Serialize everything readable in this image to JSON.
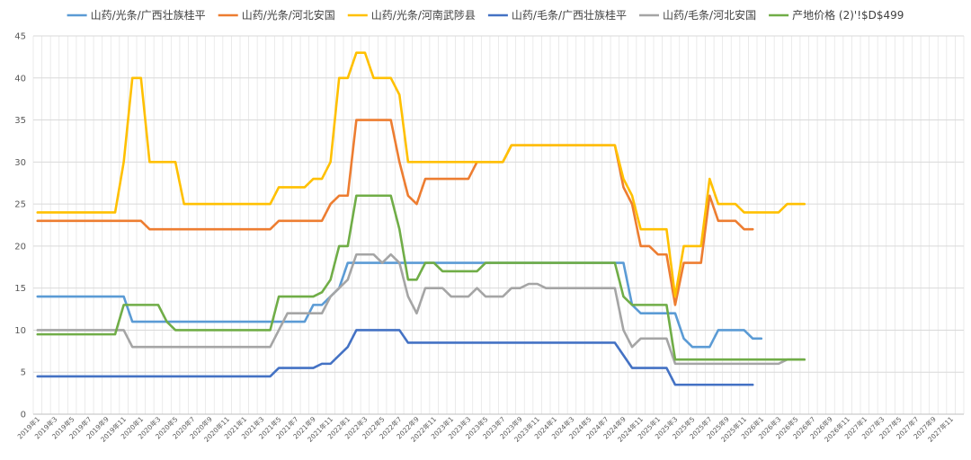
{
  "chart_data": {
    "type": "line",
    "title": "",
    "xlabel": "",
    "ylabel": "",
    "ylim": [
      0,
      45
    ],
    "y_ticks": [
      0,
      5,
      10,
      15,
      20,
      25,
      30,
      35,
      40,
      45
    ],
    "grid": true,
    "legend_position": "top",
    "x_tick_labels": [
      "2019年1",
      "2019年3",
      "2019年5",
      "2019年7",
      "2019年9",
      "2019年11",
      "2020年1",
      "2020年3",
      "2020年5",
      "2020年7",
      "2020年9",
      "2020年11",
      "2021年1",
      "2021年3",
      "2021年5",
      "2021年7",
      "2021年9",
      "2021年11",
      "2022年1",
      "2022年3",
      "2022年5",
      "2022年7",
      "2022年9",
      "2022年11",
      "2023年1",
      "2023年3",
      "2023年5",
      "2023年7",
      "2023年9",
      "2023年11",
      "2024年1",
      "2024年3",
      "2024年5",
      "2024年7",
      "2024年9",
      "2024年11",
      "2025年1",
      "2025年3",
      "2025年5",
      "2025年7",
      "2025年9",
      "2025年11",
      "2026年1",
      "2026年3",
      "2026年5",
      "2026年7",
      "2026年9",
      "2026年11",
      "2027年1",
      "2027年3",
      "2027年5",
      "2027年7",
      "2027年9",
      "2027年11"
    ],
    "x_start": "2019-01",
    "series": [
      {
        "name": "山药/光条/广西壮族桂平",
        "color": "#5B9BD5",
        "points": [
          [
            0,
            14
          ],
          [
            10,
            14
          ],
          [
            11,
            11
          ],
          [
            31,
            11
          ],
          [
            32,
            13
          ],
          [
            33,
            13
          ],
          [
            35,
            15
          ],
          [
            36,
            18
          ],
          [
            52,
            18
          ],
          [
            56,
            18
          ],
          [
            68,
            18
          ],
          [
            69,
            13
          ],
          [
            70,
            12
          ],
          [
            73,
            12
          ],
          [
            74,
            12
          ],
          [
            75,
            9
          ],
          [
            76,
            8
          ],
          [
            78,
            8
          ],
          [
            79,
            10
          ],
          [
            82,
            10
          ],
          [
            83,
            9
          ],
          [
            84,
            9
          ]
        ]
      },
      {
        "name": "山药/光条/河北安国",
        "color": "#ED7D31",
        "points": [
          [
            0,
            23
          ],
          [
            12,
            23
          ],
          [
            13,
            22
          ],
          [
            27,
            22
          ],
          [
            28,
            23
          ],
          [
            33,
            23
          ],
          [
            34,
            25
          ],
          [
            35,
            26
          ],
          [
            36,
            26
          ],
          [
            37,
            35
          ],
          [
            41,
            35
          ],
          [
            42,
            30
          ],
          [
            43,
            26
          ],
          [
            44,
            25
          ],
          [
            45,
            28
          ],
          [
            50,
            28
          ],
          [
            51,
            30
          ],
          [
            54,
            30
          ],
          [
            55,
            32
          ],
          [
            67,
            32
          ],
          [
            68,
            27
          ],
          [
            69,
            25
          ],
          [
            70,
            20
          ],
          [
            71,
            20
          ],
          [
            72,
            19
          ],
          [
            73,
            19
          ],
          [
            74,
            13
          ],
          [
            75,
            18
          ],
          [
            77,
            18
          ],
          [
            78,
            26
          ],
          [
            79,
            23
          ],
          [
            81,
            23
          ],
          [
            82,
            22
          ],
          [
            83,
            22
          ]
        ]
      },
      {
        "name": "山药/光条/河南武陟县",
        "color": "#FFC000",
        "points": [
          [
            0,
            24
          ],
          [
            9,
            24
          ],
          [
            10,
            30
          ],
          [
            11,
            40
          ],
          [
            12,
            40
          ],
          [
            13,
            30
          ],
          [
            16,
            30
          ],
          [
            17,
            25
          ],
          [
            27,
            25
          ],
          [
            28,
            27
          ],
          [
            31,
            27
          ],
          [
            32,
            28
          ],
          [
            33,
            28
          ],
          [
            34,
            30
          ],
          [
            35,
            40
          ],
          [
            36,
            40
          ],
          [
            37,
            43
          ],
          [
            38,
            43
          ],
          [
            39,
            40
          ],
          [
            41,
            40
          ],
          [
            42,
            38
          ],
          [
            43,
            30
          ],
          [
            54,
            30
          ],
          [
            55,
            32
          ],
          [
            67,
            32
          ],
          [
            68,
            28
          ],
          [
            69,
            26
          ],
          [
            70,
            22
          ],
          [
            73,
            22
          ],
          [
            74,
            14
          ],
          [
            75,
            20
          ],
          [
            77,
            20
          ],
          [
            78,
            28
          ],
          [
            79,
            25
          ],
          [
            81,
            25
          ],
          [
            82,
            24
          ],
          [
            86,
            24
          ],
          [
            87,
            25
          ],
          [
            89,
            25
          ]
        ]
      },
      {
        "name": "山药/毛条/广西壮族桂平",
        "color": "#4472C4",
        "points": [
          [
            0,
            4.5
          ],
          [
            27,
            4.5
          ],
          [
            28,
            5.5
          ],
          [
            32,
            5.5
          ],
          [
            33,
            6
          ],
          [
            34,
            6
          ],
          [
            36,
            8
          ],
          [
            37,
            10
          ],
          [
            42,
            10
          ],
          [
            43,
            8.5
          ],
          [
            67,
            8.5
          ],
          [
            68,
            7
          ],
          [
            69,
            5.5
          ],
          [
            73,
            5.5
          ],
          [
            74,
            3.5
          ],
          [
            83,
            3.5
          ]
        ]
      },
      {
        "name": "山药/毛条/河北安国",
        "color": "#A5A5A5",
        "points": [
          [
            0,
            10
          ],
          [
            10,
            10
          ],
          [
            11,
            8
          ],
          [
            27,
            8
          ],
          [
            28,
            10
          ],
          [
            29,
            12
          ],
          [
            33,
            12
          ],
          [
            34,
            14
          ],
          [
            35,
            15
          ],
          [
            36,
            16
          ],
          [
            37,
            19
          ],
          [
            39,
            19
          ],
          [
            40,
            18
          ],
          [
            41,
            19
          ],
          [
            42,
            18
          ],
          [
            43,
            14
          ],
          [
            44,
            12
          ],
          [
            45,
            15
          ],
          [
            47,
            15
          ],
          [
            48,
            14
          ],
          [
            50,
            14
          ],
          [
            51,
            15
          ],
          [
            52,
            14
          ],
          [
            54,
            14
          ],
          [
            55,
            15
          ],
          [
            56,
            15
          ],
          [
            57,
            15.5
          ],
          [
            58,
            15.5
          ],
          [
            59,
            15
          ],
          [
            67,
            15
          ],
          [
            68,
            10
          ],
          [
            69,
            8
          ],
          [
            70,
            9
          ],
          [
            73,
            9
          ],
          [
            74,
            6
          ],
          [
            86,
            6
          ],
          [
            87,
            6.5
          ],
          [
            89,
            6.5
          ]
        ]
      },
      {
        "name": "产地价格 (2)'!$D$499",
        "color": "#70AD47",
        "points": [
          [
            0,
            9.5
          ],
          [
            9,
            9.5
          ],
          [
            10,
            13
          ],
          [
            14,
            13
          ],
          [
            15,
            11
          ],
          [
            16,
            10
          ],
          [
            27,
            10
          ],
          [
            28,
            14
          ],
          [
            32,
            14
          ],
          [
            33,
            14.5
          ],
          [
            34,
            16
          ],
          [
            35,
            20
          ],
          [
            36,
            20
          ],
          [
            37,
            26
          ],
          [
            41,
            26
          ],
          [
            42,
            22
          ],
          [
            43,
            16
          ],
          [
            44,
            16
          ],
          [
            45,
            18
          ],
          [
            46,
            18
          ],
          [
            47,
            17
          ],
          [
            51,
            17
          ],
          [
            52,
            18
          ],
          [
            67,
            18
          ],
          [
            68,
            14
          ],
          [
            69,
            13
          ],
          [
            73,
            13
          ],
          [
            74,
            6.5
          ],
          [
            89,
            6.5
          ]
        ]
      }
    ]
  }
}
